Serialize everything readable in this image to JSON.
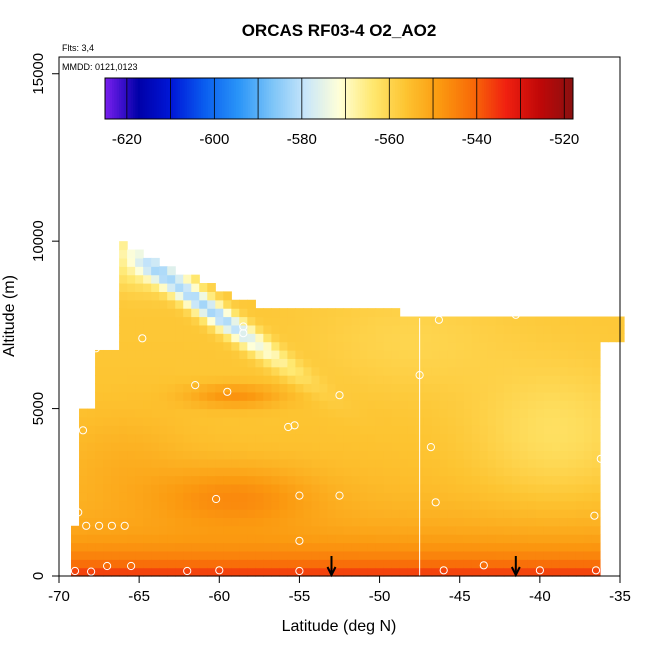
{
  "chart_data": {
    "type": "heatmap",
    "title": "ORCAS RF03-4 O2_AO2",
    "xlabel": "Latitude (deg N)",
    "ylabel": "Altitude (m)",
    "flights_note": "Flts: 3,4",
    "dates_note": "MMDD: 0121,0123",
    "xlim": [
      -70,
      -35
    ],
    "ylim": [
      0,
      15500
    ],
    "x_ticks": [
      -70,
      -65,
      -60,
      -55,
      -50,
      -45,
      -40,
      -35
    ],
    "y_ticks": [
      0,
      5000,
      10000,
      15000
    ],
    "colorbar": {
      "range": [
        -625,
        -518
      ],
      "ticks": [
        -620,
        -600,
        -580,
        -560,
        -540,
        -520
      ],
      "colors": [
        "#7a1ff0",
        "#0000a8",
        "#0018d8",
        "#0a5ff0",
        "#2a95f8",
        "#7cc4f8",
        "#c8e6fa",
        "#ffffd8",
        "#ffe870",
        "#fdc431",
        "#fb9a10",
        "#f86a08",
        "#f02010",
        "#c00808",
        "#8a1010"
      ]
    },
    "grid": false,
    "legend": "colorbar top",
    "coverage": {
      "lat_range": [
        -69,
        -36.3
      ],
      "top_altitude_north": 7800,
      "top_altitude_south": 10000
    },
    "gap_latitude": -47.5,
    "arrows_latitude": [
      -53,
      -41.5
    ],
    "sample_points": [
      [
        -69,
        150
      ],
      [
        -68,
        130
      ],
      [
        -67,
        300
      ],
      [
        -65.5,
        300
      ],
      [
        -62,
        150
      ],
      [
        -60,
        170
      ],
      [
        -55,
        150
      ],
      [
        -46,
        170
      ],
      [
        -43.5,
        320
      ],
      [
        -40,
        170
      ],
      [
        -36.5,
        170
      ],
      [
        -68.8,
        1900
      ],
      [
        -68.3,
        1500
      ],
      [
        -67.5,
        1500
      ],
      [
        -66.7,
        1500
      ],
      [
        -65.9,
        1500
      ],
      [
        -68.5,
        4350
      ],
      [
        -61.5,
        5700
      ],
      [
        -59.5,
        5500
      ],
      [
        -55.7,
        4450
      ],
      [
        -55.3,
        4500
      ],
      [
        -52.5,
        5400
      ],
      [
        -60.2,
        2300
      ],
      [
        -55,
        2400
      ],
      [
        -52.5,
        2400
      ],
      [
        -55,
        1050
      ],
      [
        -46.5,
        2200
      ],
      [
        -36.6,
        1800
      ],
      [
        -46.8,
        3850
      ],
      [
        -67.7,
        6800
      ],
      [
        -64.8,
        7100
      ],
      [
        -58.5,
        7450
      ],
      [
        -58.5,
        7250
      ],
      [
        -47.5,
        6000
      ],
      [
        -46.3,
        7650
      ],
      [
        -41.5,
        7800
      ],
      [
        -36.2,
        3500
      ]
    ]
  }
}
